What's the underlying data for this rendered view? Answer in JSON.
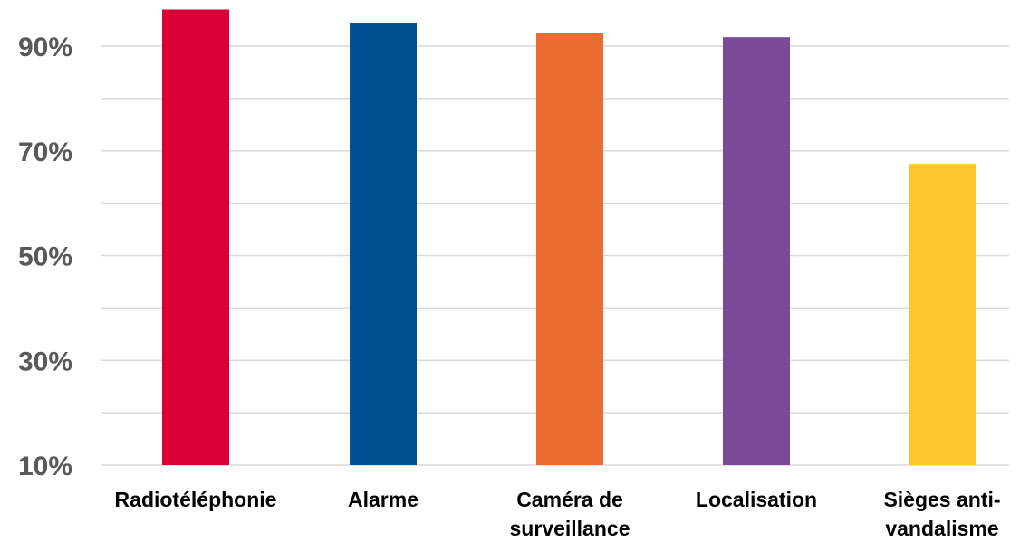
{
  "chart_data": {
    "type": "bar",
    "categories": [
      [
        "Radiotéléphonie"
      ],
      [
        "Alarme"
      ],
      [
        "Caméra de",
        "surveillance"
      ],
      [
        "Localisation"
      ],
      [
        "Sièges anti-",
        "vandalisme"
      ]
    ],
    "values": [
      97,
      94.5,
      92.5,
      91.7,
      67.5
    ],
    "colors": [
      "#d90036",
      "#005192",
      "#eb6c30",
      "#7a4a97",
      "#fec52d"
    ],
    "ylim": [
      10,
      97
    ],
    "yticks": [
      "10%",
      "30%",
      "50%",
      "70%",
      "90%"
    ],
    "ytick_values": [
      10,
      30,
      50,
      70,
      90
    ],
    "grid": true,
    "title": "",
    "xlabel": "",
    "ylabel": ""
  }
}
